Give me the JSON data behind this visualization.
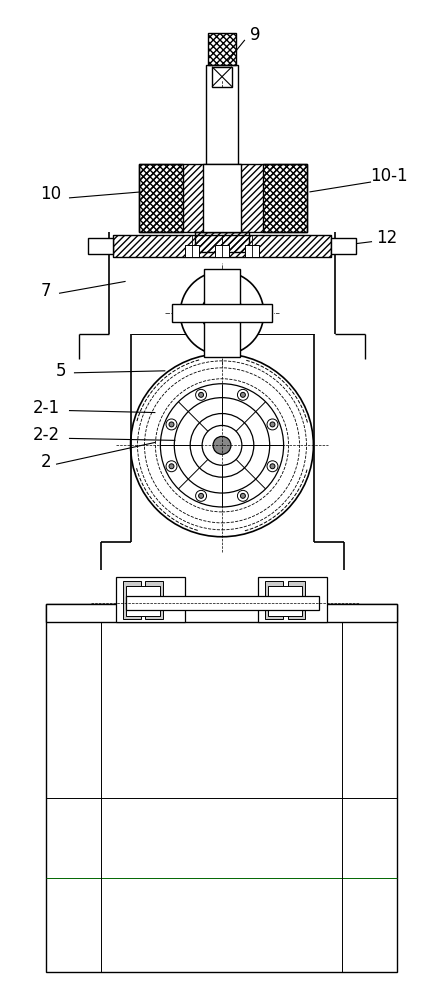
{
  "bg_color": "#ffffff",
  "line_color": "#000000",
  "green_line": "#006600",
  "label_color": "#000000",
  "figsize": [
    4.43,
    10.0
  ],
  "dpi": 100
}
